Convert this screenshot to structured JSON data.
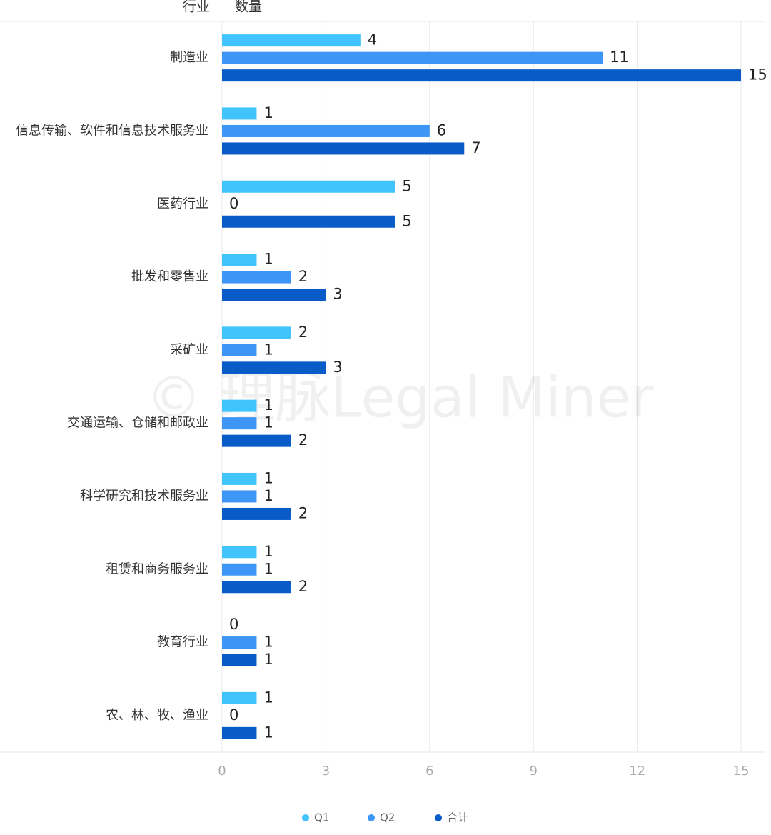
{
  "chart_data": {
    "type": "bar",
    "orientation": "horizontal",
    "category_header": "行业",
    "value_header": "数量",
    "watermark": "© 理脉Legal Miner",
    "categories": [
      "制造业",
      "信息传输、软件和信息技术服务业",
      "医药行业",
      "批发和零售业",
      "采矿业",
      "交通运输、仓储和邮政业",
      "科学研究和技术服务业",
      "租赁和商务服务业",
      "教育行业",
      "农、林、牧、渔业"
    ],
    "series": [
      {
        "name": "Q1",
        "color": "#40c4fb",
        "values": [
          4,
          1,
          5,
          1,
          2,
          1,
          1,
          1,
          0,
          1
        ]
      },
      {
        "name": "Q2",
        "color": "#3d95f5",
        "values": [
          11,
          6,
          0,
          2,
          1,
          1,
          1,
          1,
          1,
          0
        ]
      },
      {
        "name": "合计",
        "color": "#095cc8",
        "values": [
          15,
          7,
          5,
          3,
          3,
          2,
          2,
          2,
          1,
          1
        ]
      }
    ],
    "xlim": [
      0,
      15
    ],
    "xticks": [
      0,
      3,
      6,
      9,
      12,
      15
    ],
    "grid": true,
    "legend": "bottom"
  }
}
